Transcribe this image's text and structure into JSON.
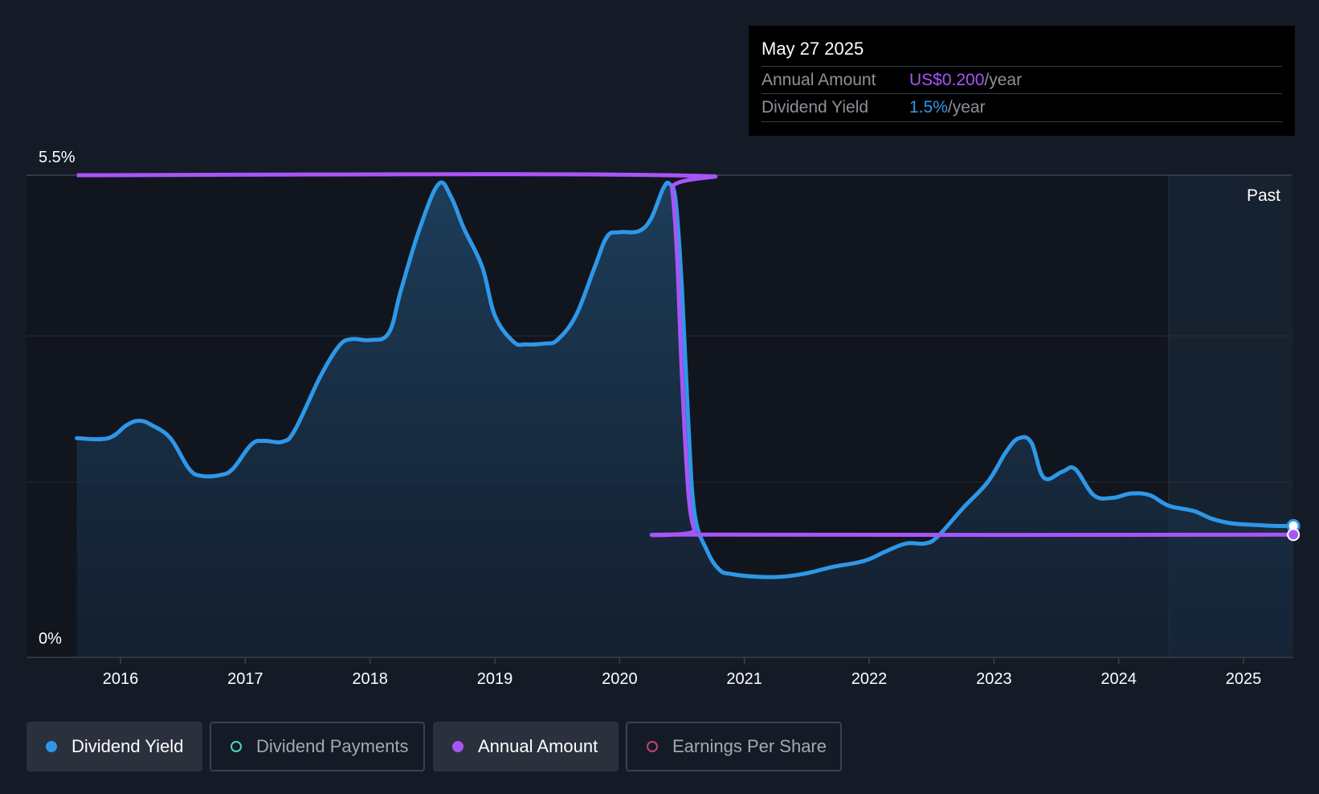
{
  "tooltip": {
    "date": "May 27 2025",
    "annual_label": "Annual Amount",
    "annual_value": "US$0.200",
    "annual_unit": "/year",
    "yield_label": "Dividend Yield",
    "yield_value": "1.5%",
    "yield_unit": "/year"
  },
  "legend": [
    {
      "label": "Dividend Yield",
      "color": "#2e97e8",
      "active": true
    },
    {
      "label": "Dividend Payments",
      "color": "#4fd1c5",
      "active": false
    },
    {
      "label": "Annual Amount",
      "color": "#a855f7",
      "active": true
    },
    {
      "label": "Earnings Per Share",
      "color": "#c2417a",
      "active": false
    }
  ],
  "chart_data": {
    "type": "line",
    "title": "",
    "past_label": "Past",
    "x_range": [
      2015.25,
      2025.4
    ],
    "ylim": [
      0,
      5.5
    ],
    "y_tick_labels": [
      "5.5%",
      "0%"
    ],
    "x_ticks": [
      2016,
      2017,
      2018,
      2019,
      2020,
      2021,
      2022,
      2023,
      2024,
      2025
    ],
    "past_region_start": 2024.4,
    "series": [
      {
        "name": "Dividend Yield",
        "color": "#2e97e8",
        "x": [
          2015.65,
          2015.9,
          2016.05,
          2016.15,
          2016.25,
          2016.4,
          2016.55,
          2016.65,
          2016.8,
          2016.9,
          2017.05,
          2017.15,
          2017.3,
          2017.4,
          2017.6,
          2017.75,
          2017.85,
          2018.0,
          2018.15,
          2018.25,
          2018.4,
          2018.55,
          2018.65,
          2018.75,
          2018.9,
          2019.0,
          2019.15,
          2019.25,
          2019.4,
          2019.5,
          2019.65,
          2019.8,
          2019.9,
          2020.0,
          2020.15,
          2020.25,
          2020.35,
          2020.4,
          2020.45,
          2020.5,
          2020.55,
          2020.6,
          2020.7,
          2020.8,
          2020.9,
          2021.1,
          2021.3,
          2021.5,
          2021.7,
          2021.9,
          2022.0,
          2022.15,
          2022.3,
          2022.45,
          2022.55,
          2022.75,
          2022.95,
          2023.1,
          2023.2,
          2023.3,
          2023.4,
          2023.55,
          2023.65,
          2023.8,
          2023.95,
          2024.1,
          2024.25,
          2024.4,
          2024.6,
          2024.75,
          2024.9,
          2025.1,
          2025.25,
          2025.4
        ],
        "values": [
          2.5,
          2.5,
          2.65,
          2.7,
          2.65,
          2.5,
          2.15,
          2.07,
          2.08,
          2.15,
          2.43,
          2.47,
          2.46,
          2.6,
          3.2,
          3.55,
          3.63,
          3.62,
          3.7,
          4.2,
          4.9,
          5.4,
          5.25,
          4.9,
          4.45,
          3.9,
          3.6,
          3.57,
          3.58,
          3.62,
          3.9,
          4.45,
          4.8,
          4.85,
          4.86,
          5.0,
          5.35,
          5.4,
          5.2,
          4.2,
          2.7,
          1.65,
          1.22,
          1.0,
          0.95,
          0.92,
          0.92,
          0.96,
          1.03,
          1.08,
          1.12,
          1.22,
          1.3,
          1.3,
          1.38,
          1.7,
          2.0,
          2.35,
          2.5,
          2.45,
          2.05,
          2.12,
          2.15,
          1.85,
          1.82,
          1.87,
          1.85,
          1.73,
          1.67,
          1.58,
          1.53,
          1.51,
          1.5,
          1.5
        ]
      },
      {
        "name": "Annual Amount",
        "color": "#a855f7",
        "x": [
          2015.65,
          2020.38,
          2020.42,
          2020.46,
          2020.5,
          2020.55,
          2020.6,
          2020.65,
          2025.4
        ],
        "values": [
          5.5,
          5.5,
          5.35,
          4.6,
          3.2,
          1.9,
          1.45,
          1.4,
          1.4
        ]
      }
    ]
  }
}
